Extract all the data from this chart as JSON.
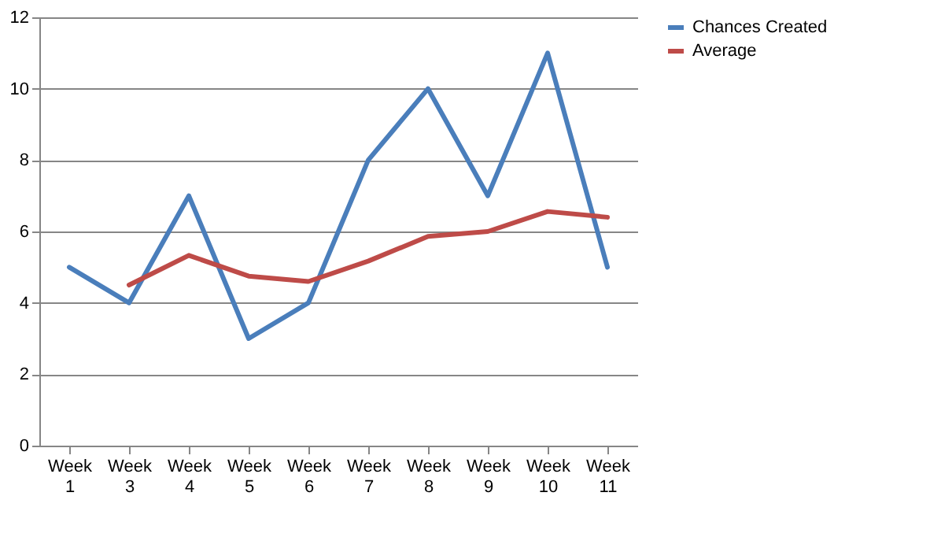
{
  "chart_data": {
    "type": "line",
    "categories": [
      "Week 1",
      "Week 3",
      "Week 4",
      "Week 5",
      "Week 6",
      "Week 7",
      "Week 8",
      "Week 9",
      "Week 10",
      "Week 11"
    ],
    "series": [
      {
        "name": "Chances Created",
        "color": "#4a7ebb",
        "values": [
          5,
          4,
          7,
          3,
          4,
          8,
          10,
          7,
          11,
          5
        ]
      },
      {
        "name": "Average",
        "color": "#be4b48",
        "values": [
          null,
          4.5,
          5.33,
          4.75,
          4.6,
          5.17,
          5.86,
          6.0,
          6.56,
          6.4
        ]
      }
    ],
    "ylim": [
      0,
      12
    ],
    "yticks": [
      0,
      2,
      4,
      6,
      8,
      10,
      12
    ],
    "grid": "y",
    "legend": "right",
    "marker": "none",
    "line_style": "solid"
  }
}
